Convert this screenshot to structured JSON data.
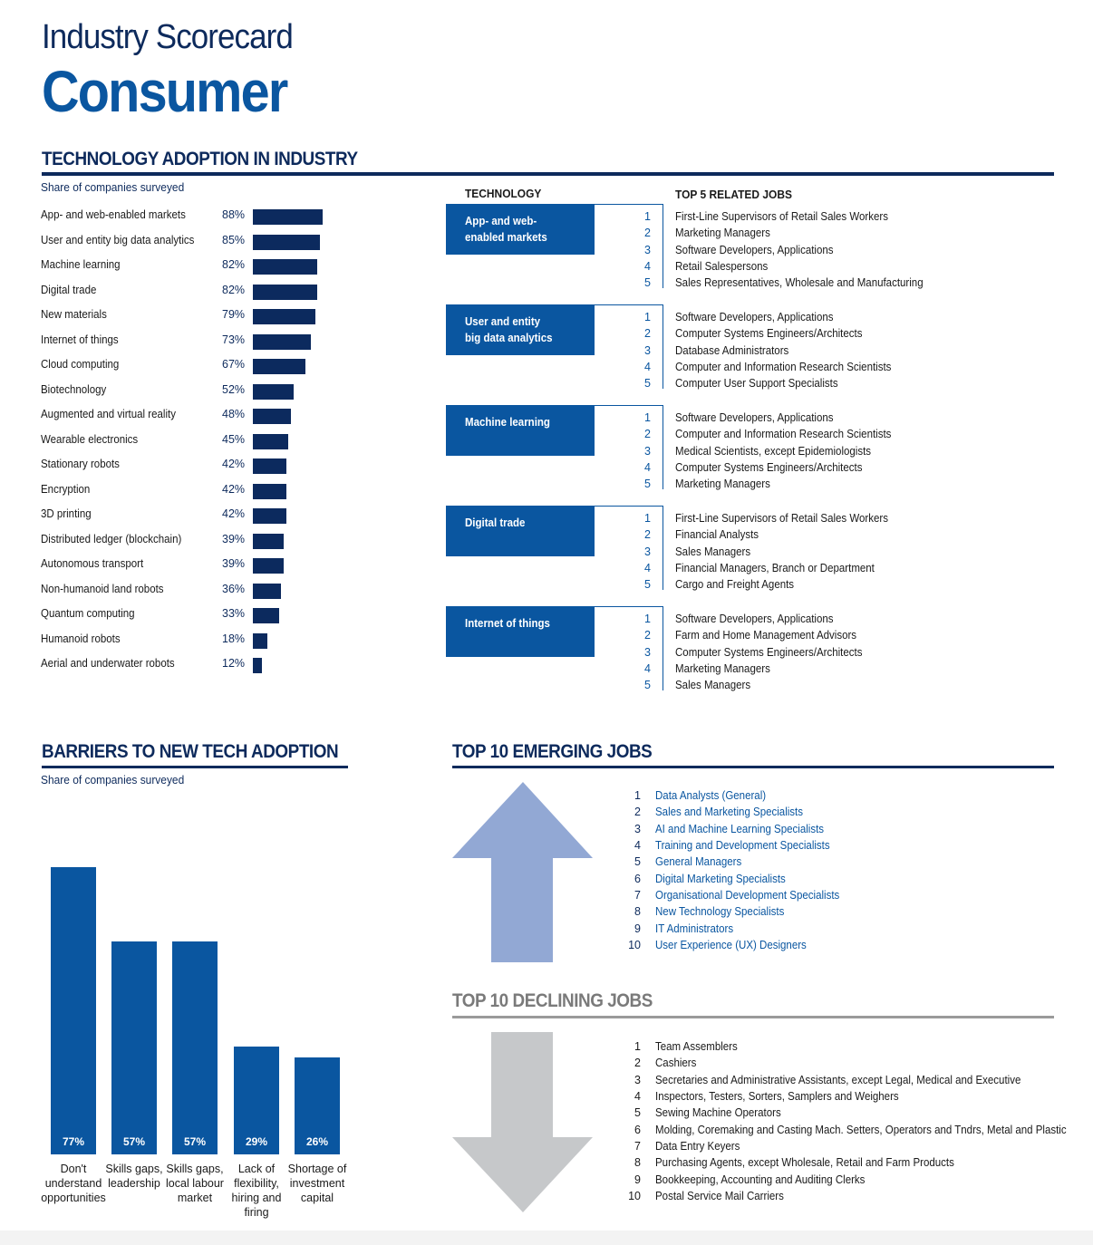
{
  "header": {
    "line1": "Industry Scorecard",
    "line2": "Consumer"
  },
  "adoption": {
    "heading": "TECHNOLOGY ADOPTION IN INDUSTRY",
    "subtitle": "Share of companies surveyed",
    "items": [
      {
        "label": "App- and web-enabled markets",
        "pct": "88%",
        "value": 88
      },
      {
        "label": "User and entity big data analytics",
        "pct": "85%",
        "value": 85
      },
      {
        "label": "Machine learning",
        "pct": "82%",
        "value": 82
      },
      {
        "label": "Digital trade",
        "pct": "82%",
        "value": 82
      },
      {
        "label": "New materials",
        "pct": "79%",
        "value": 79
      },
      {
        "label": "Internet of things",
        "pct": "73%",
        "value": 73
      },
      {
        "label": "Cloud computing",
        "pct": "67%",
        "value": 67
      },
      {
        "label": "Biotechnology",
        "pct": "52%",
        "value": 52
      },
      {
        "label": "Augmented and virtual reality",
        "pct": "48%",
        "value": 48
      },
      {
        "label": "Wearable electronics",
        "pct": "45%",
        "value": 45
      },
      {
        "label": "Stationary robots",
        "pct": "42%",
        "value": 42
      },
      {
        "label": "Encryption",
        "pct": "42%",
        "value": 42
      },
      {
        "label": "3D printing",
        "pct": "42%",
        "value": 42
      },
      {
        "label": "Distributed ledger (blockchain)",
        "pct": "39%",
        "value": 39
      },
      {
        "label": "Autonomous transport",
        "pct": "39%",
        "value": 39
      },
      {
        "label": "Non-humanoid land robots",
        "pct": "36%",
        "value": 36
      },
      {
        "label": "Quantum computing",
        "pct": "33%",
        "value": 33
      },
      {
        "label": "Humanoid robots",
        "pct": "18%",
        "value": 18
      },
      {
        "label": "Aerial and underwater robots",
        "pct": "12%",
        "value": 12
      }
    ]
  },
  "related": {
    "col_technology": "TECHNOLOGY",
    "col_jobs": "TOP 5 RELATED JOBS",
    "groups": [
      {
        "tech": [
          "App- and web-",
          "enabled markets"
        ],
        "jobs": [
          "First-Line Supervisors of Retail Sales Workers",
          "Marketing Managers",
          "Software Developers, Applications",
          "Retail Salespersons",
          "Sales Representatives, Wholesale and Manufacturing"
        ]
      },
      {
        "tech": [
          "User and entity",
          "big data analytics"
        ],
        "jobs": [
          "Software Developers, Applications",
          "Computer Systems Engineers/Architects",
          "Database Administrators",
          "Computer and Information Research Scientists",
          "Computer User Support Specialists"
        ]
      },
      {
        "tech": [
          "Machine learning"
        ],
        "jobs": [
          "Software Developers, Applications",
          "Computer and Information Research Scientists",
          "Medical Scientists, except Epidemiologists",
          "Computer Systems Engineers/Architects",
          "Marketing Managers"
        ]
      },
      {
        "tech": [
          "Digital trade"
        ],
        "jobs": [
          "First-Line Supervisors of Retail Sales Workers",
          "Financial Analysts",
          "Sales Managers",
          "Financial Managers, Branch or Department",
          "Cargo and Freight Agents"
        ]
      },
      {
        "tech": [
          "Internet of things"
        ],
        "jobs": [
          "Software Developers, Applications",
          "Farm and Home Management Advisors",
          "Computer Systems Engineers/Architects",
          "Marketing Managers",
          "Sales Managers"
        ]
      }
    ],
    "numbers": [
      "1",
      "2",
      "3",
      "4",
      "5"
    ]
  },
  "barriers": {
    "heading": "BARRIERS TO NEW TECH ADOPTION",
    "subtitle": "Share of companies surveyed",
    "chart_data": {
      "type": "bar",
      "categories": [
        "Don't understand opportunities",
        "Skills gaps, leadership",
        "Skills gaps, local labour market",
        "Lack of flexibility, hiring and firing",
        "Shortage of investment capital"
      ],
      "category_lines": [
        [
          "Don't",
          "understand",
          "opportunities"
        ],
        [
          "Skills gaps,",
          "leadership"
        ],
        [
          "Skills gaps,",
          "local labour",
          "market"
        ],
        [
          "Lack of",
          "flexibility,",
          "hiring and",
          "firing"
        ],
        [
          "Shortage of",
          "investment",
          "capital"
        ]
      ],
      "values": [
        77,
        57,
        57,
        29,
        26
      ],
      "labels": [
        "77%",
        "57%",
        "57%",
        "29%",
        "26%"
      ],
      "ylim": [
        0,
        100
      ],
      "color": "#0a56a0"
    }
  },
  "emerging": {
    "heading": "TOP 10 EMERGING JOBS",
    "arrow_color": "#92a8d4",
    "jobs": [
      "Data Analysts (General)",
      "Sales and Marketing Specialists",
      "AI and Machine Learning Specialists",
      "Training and Development Specialists",
      "General Managers",
      "Digital Marketing Specialists",
      "Organisational Development Specialists",
      "New Technology Specialists",
      "IT Administrators",
      "User Experience (UX) Designers"
    ]
  },
  "declining": {
    "heading": "TOP 10 DECLINING JOBS",
    "arrow_color": "#c6c8ca",
    "jobs": [
      "Team Assemblers",
      "Cashiers",
      "Secretaries and Administrative Assistants, except Legal, Medical and Executive",
      "Inspectors, Testers, Sorters, Samplers and Weighers",
      "Sewing Machine Operators",
      "Molding, Coremaking and Casting Mach. Setters, Operators and Tndrs, Metal and Plastic",
      "Data Entry Keyers",
      "Purchasing Agents, except Wholesale, Retail and Farm Products",
      "Bookkeeping, Accounting and Auditing Clerks",
      "Postal Service Mail Carriers"
    ]
  },
  "colors": {
    "navy": "#0d2a5c",
    "blue": "#0a56a0",
    "bar_navy": "#0c2a5e"
  }
}
